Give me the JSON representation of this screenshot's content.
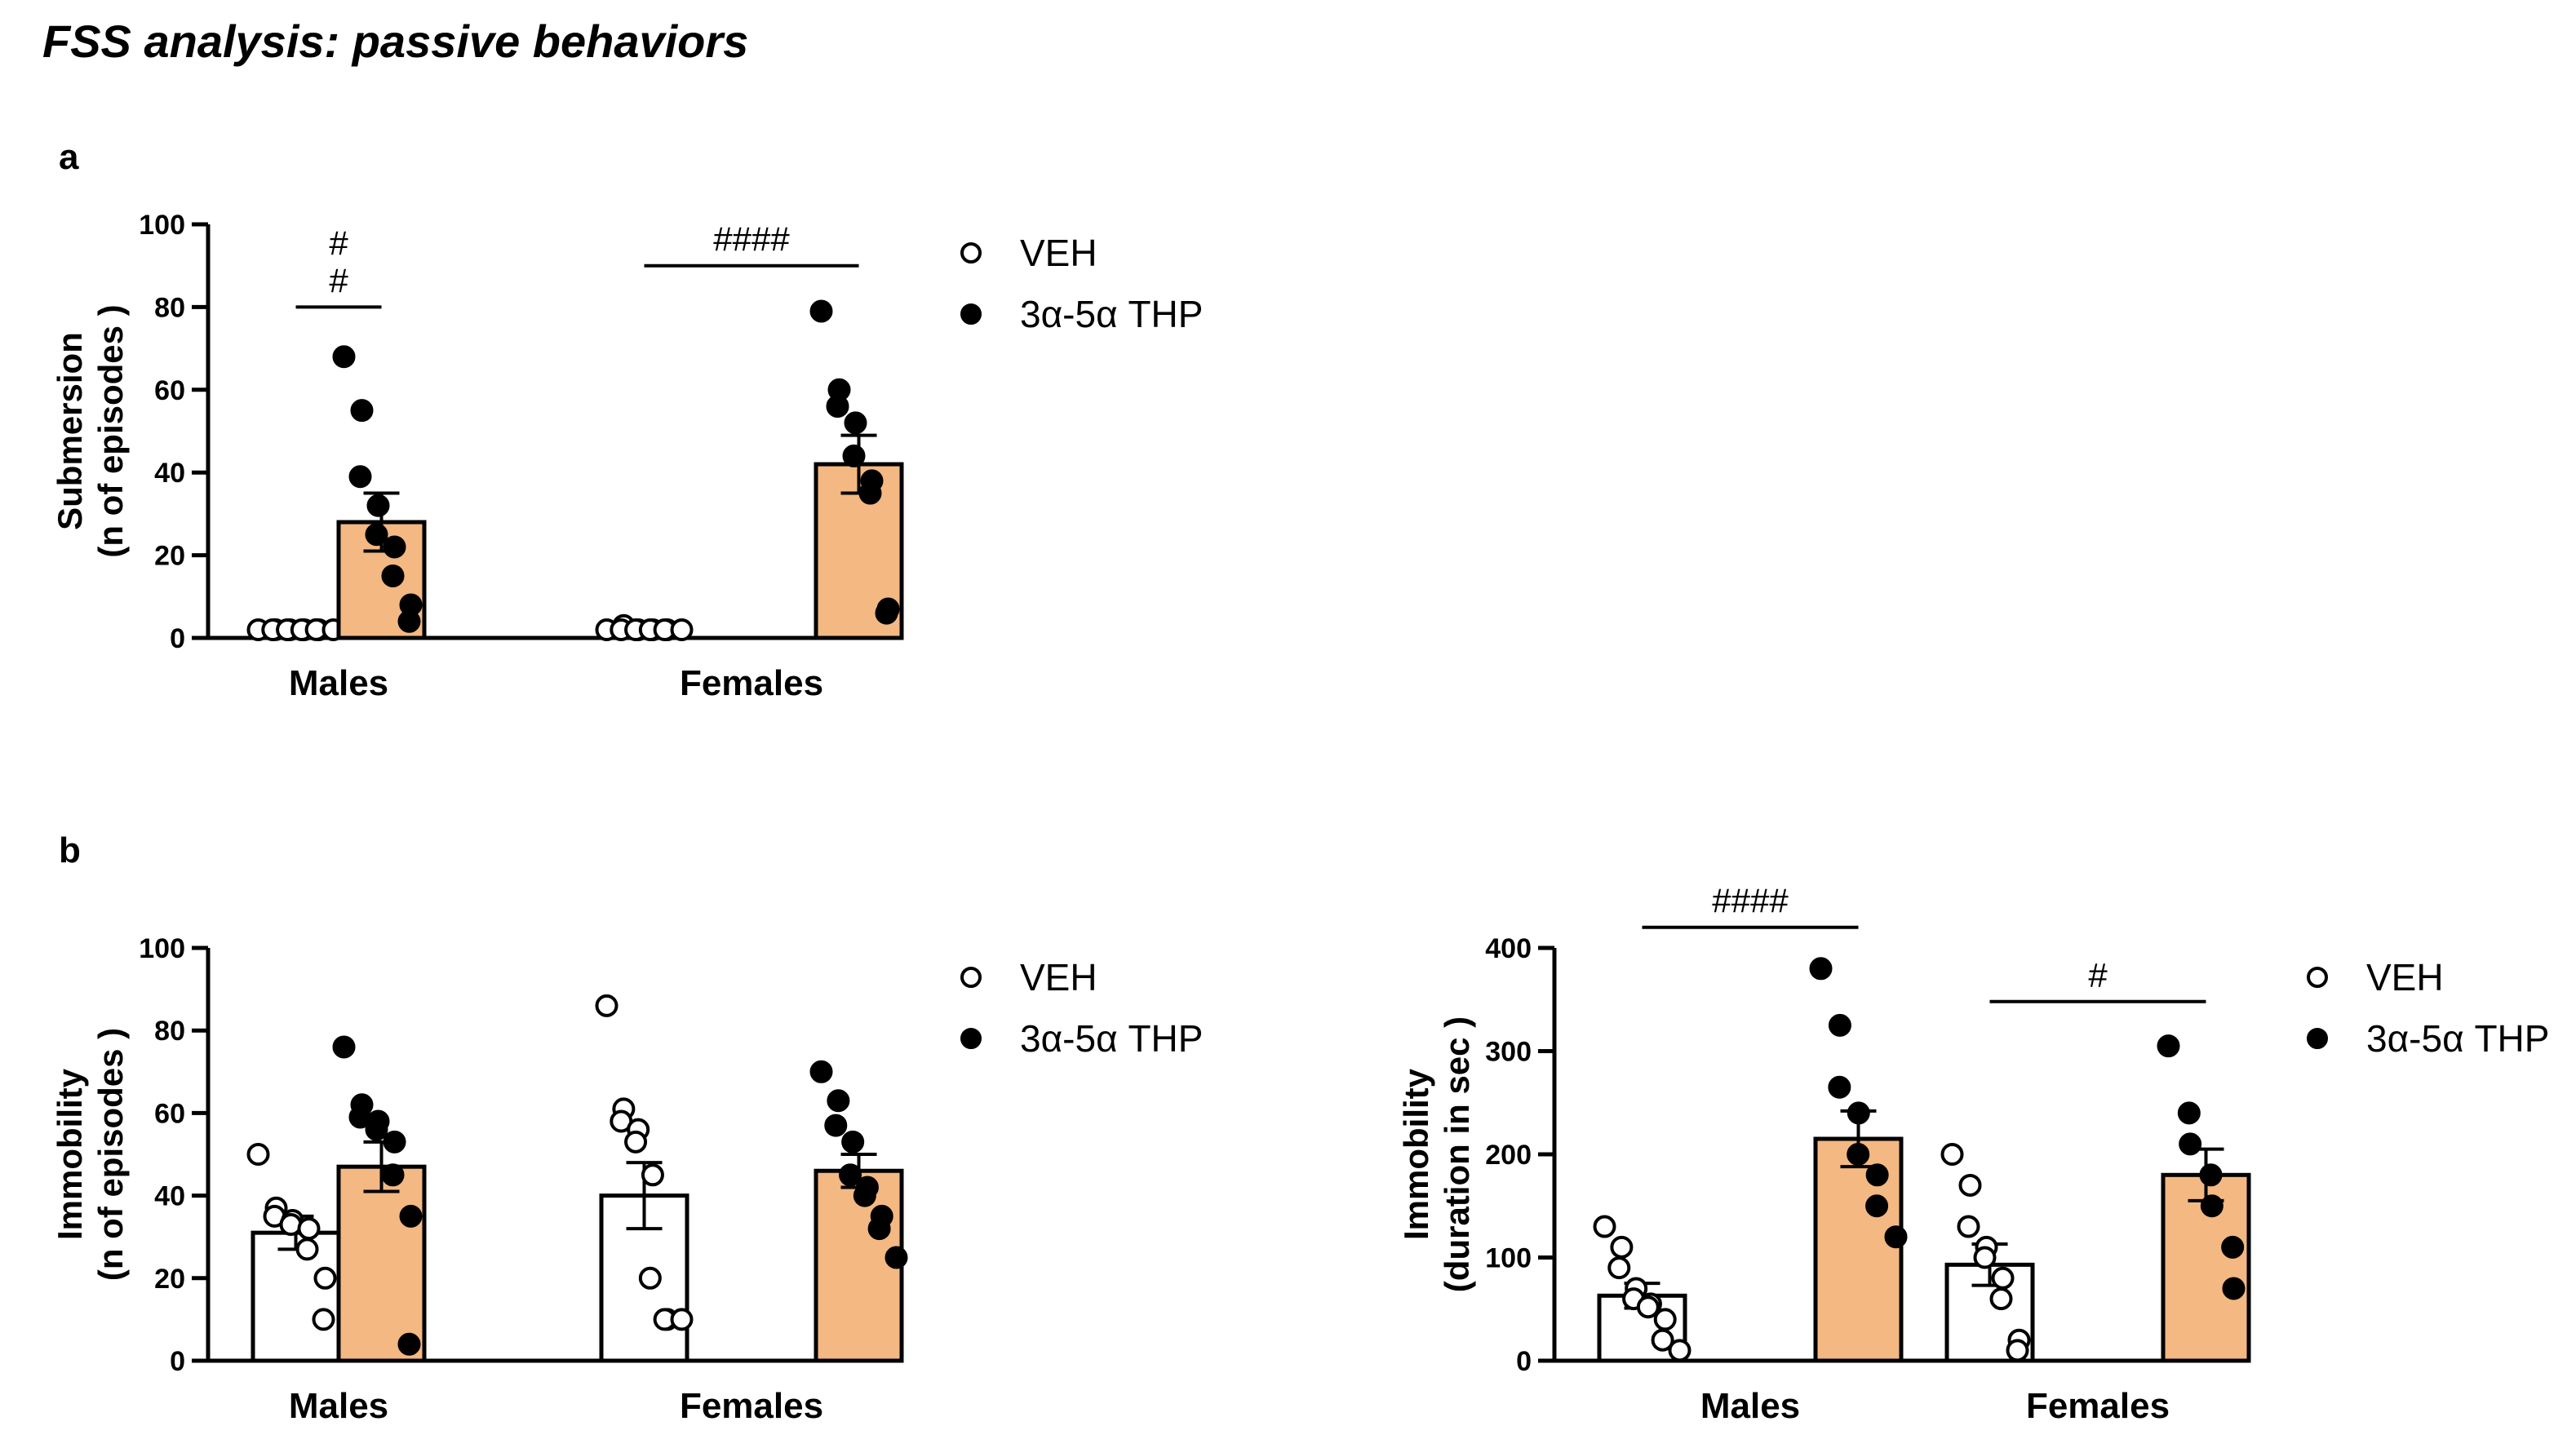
{
  "title": "FSS analysis: passive behaviors",
  "panel_labels": {
    "a": "a",
    "b": "b"
  },
  "colors": {
    "bar_thp": "#F4B883",
    "bar_veh": "#ffffff",
    "ink": "#000000"
  },
  "chart_data": [
    {
      "id": "submersion",
      "panel": "a",
      "type": "bar",
      "ylabel_lines": [
        "Submersion",
        "(n of episodes )"
      ],
      "ylim": [
        0,
        100
      ],
      "yticks": [
        0,
        20,
        40,
        60,
        80,
        100
      ],
      "categories": [
        "Males",
        "Females"
      ],
      "legend": [
        "VEH",
        "3α-5α THP"
      ],
      "series": [
        {
          "name": "VEH",
          "mean": [
            0.8,
            0.5
          ],
          "sem": [
            0.3,
            0.3
          ],
          "points": [
            [
              0,
              2,
              1,
              1,
              0,
              0,
              0,
              1,
              2,
              0
            ],
            [
              0,
              3,
              0,
              0,
              0,
              0,
              0,
              0,
              0,
              0
            ]
          ]
        },
        {
          "name": "3α-5α THP",
          "mean": [
            28,
            42
          ],
          "sem": [
            7,
            7
          ],
          "points": [
            [
              68,
              55,
              39,
              32,
              25,
              22,
              15,
              8,
              4
            ],
            [
              79,
              60,
              56,
              52,
              44,
              38,
              35,
              7,
              6
            ]
          ]
        }
      ],
      "significance": [
        {
          "category": "Males",
          "label_lines": [
            "#",
            "#"
          ],
          "y": 80
        },
        {
          "category": "Females",
          "label_lines": [
            "####"
          ],
          "y": 90
        }
      ]
    },
    {
      "id": "immobility_episodes",
      "panel": "b",
      "type": "bar",
      "ylabel_lines": [
        "Immobility",
        "(n of episodes )"
      ],
      "ylim": [
        0,
        100
      ],
      "yticks": [
        0,
        20,
        40,
        60,
        80,
        100
      ],
      "categories": [
        "Males",
        "Females"
      ],
      "legend": [
        "VEH",
        "3α-5α THP"
      ],
      "series": [
        {
          "name": "VEH",
          "mean": [
            31,
            40
          ],
          "sem": [
            4,
            8
          ],
          "points": [
            [
              50,
              37,
              35,
              34,
              33,
              32,
              27,
              20,
              10
            ],
            [
              86,
              61,
              58,
              56,
              53,
              45,
              20,
              10,
              10,
              10
            ]
          ]
        },
        {
          "name": "3α-5α THP",
          "mean": [
            47,
            46
          ],
          "sem": [
            6,
            4
          ],
          "points": [
            [
              76,
              62,
              59,
              58,
              56,
              53,
              45,
              35,
              4
            ],
            [
              70,
              63,
              57,
              53,
              45,
              42,
              40,
              35,
              32,
              25
            ]
          ]
        }
      ],
      "significance": []
    },
    {
      "id": "immobility_duration",
      "panel": "b",
      "type": "bar",
      "ylabel_lines": [
        "Immobility",
        "(duration in sec )"
      ],
      "ylim": [
        0,
        400
      ],
      "yticks": [
        0,
        100,
        200,
        300,
        400
      ],
      "categories": [
        "Males",
        "Females"
      ],
      "legend": [
        "VEH",
        "3α-5α THP"
      ],
      "series": [
        {
          "name": "VEH",
          "mean": [
            63,
            93
          ],
          "sem": [
            12,
            20
          ],
          "points": [
            [
              130,
              110,
              90,
              70,
              60,
              55,
              52,
              40,
              20,
              10
            ],
            [
              200,
              170,
              130,
              110,
              100,
              80,
              60,
              20,
              10
            ]
          ]
        },
        {
          "name": "3α-5α THP",
          "mean": [
            215,
            180
          ],
          "sem": [
            27,
            25
          ],
          "points": [
            [
              380,
              325,
              265,
              240,
              200,
              180,
              150,
              120
            ],
            [
              305,
              240,
              210,
              180,
              150,
              110,
              70
            ]
          ]
        }
      ],
      "significance": [
        {
          "category": "Males",
          "label_lines": [
            "####"
          ],
          "y": 420
        },
        {
          "category": "Females",
          "label_lines": [
            "#"
          ],
          "y": 348
        }
      ]
    }
  ]
}
